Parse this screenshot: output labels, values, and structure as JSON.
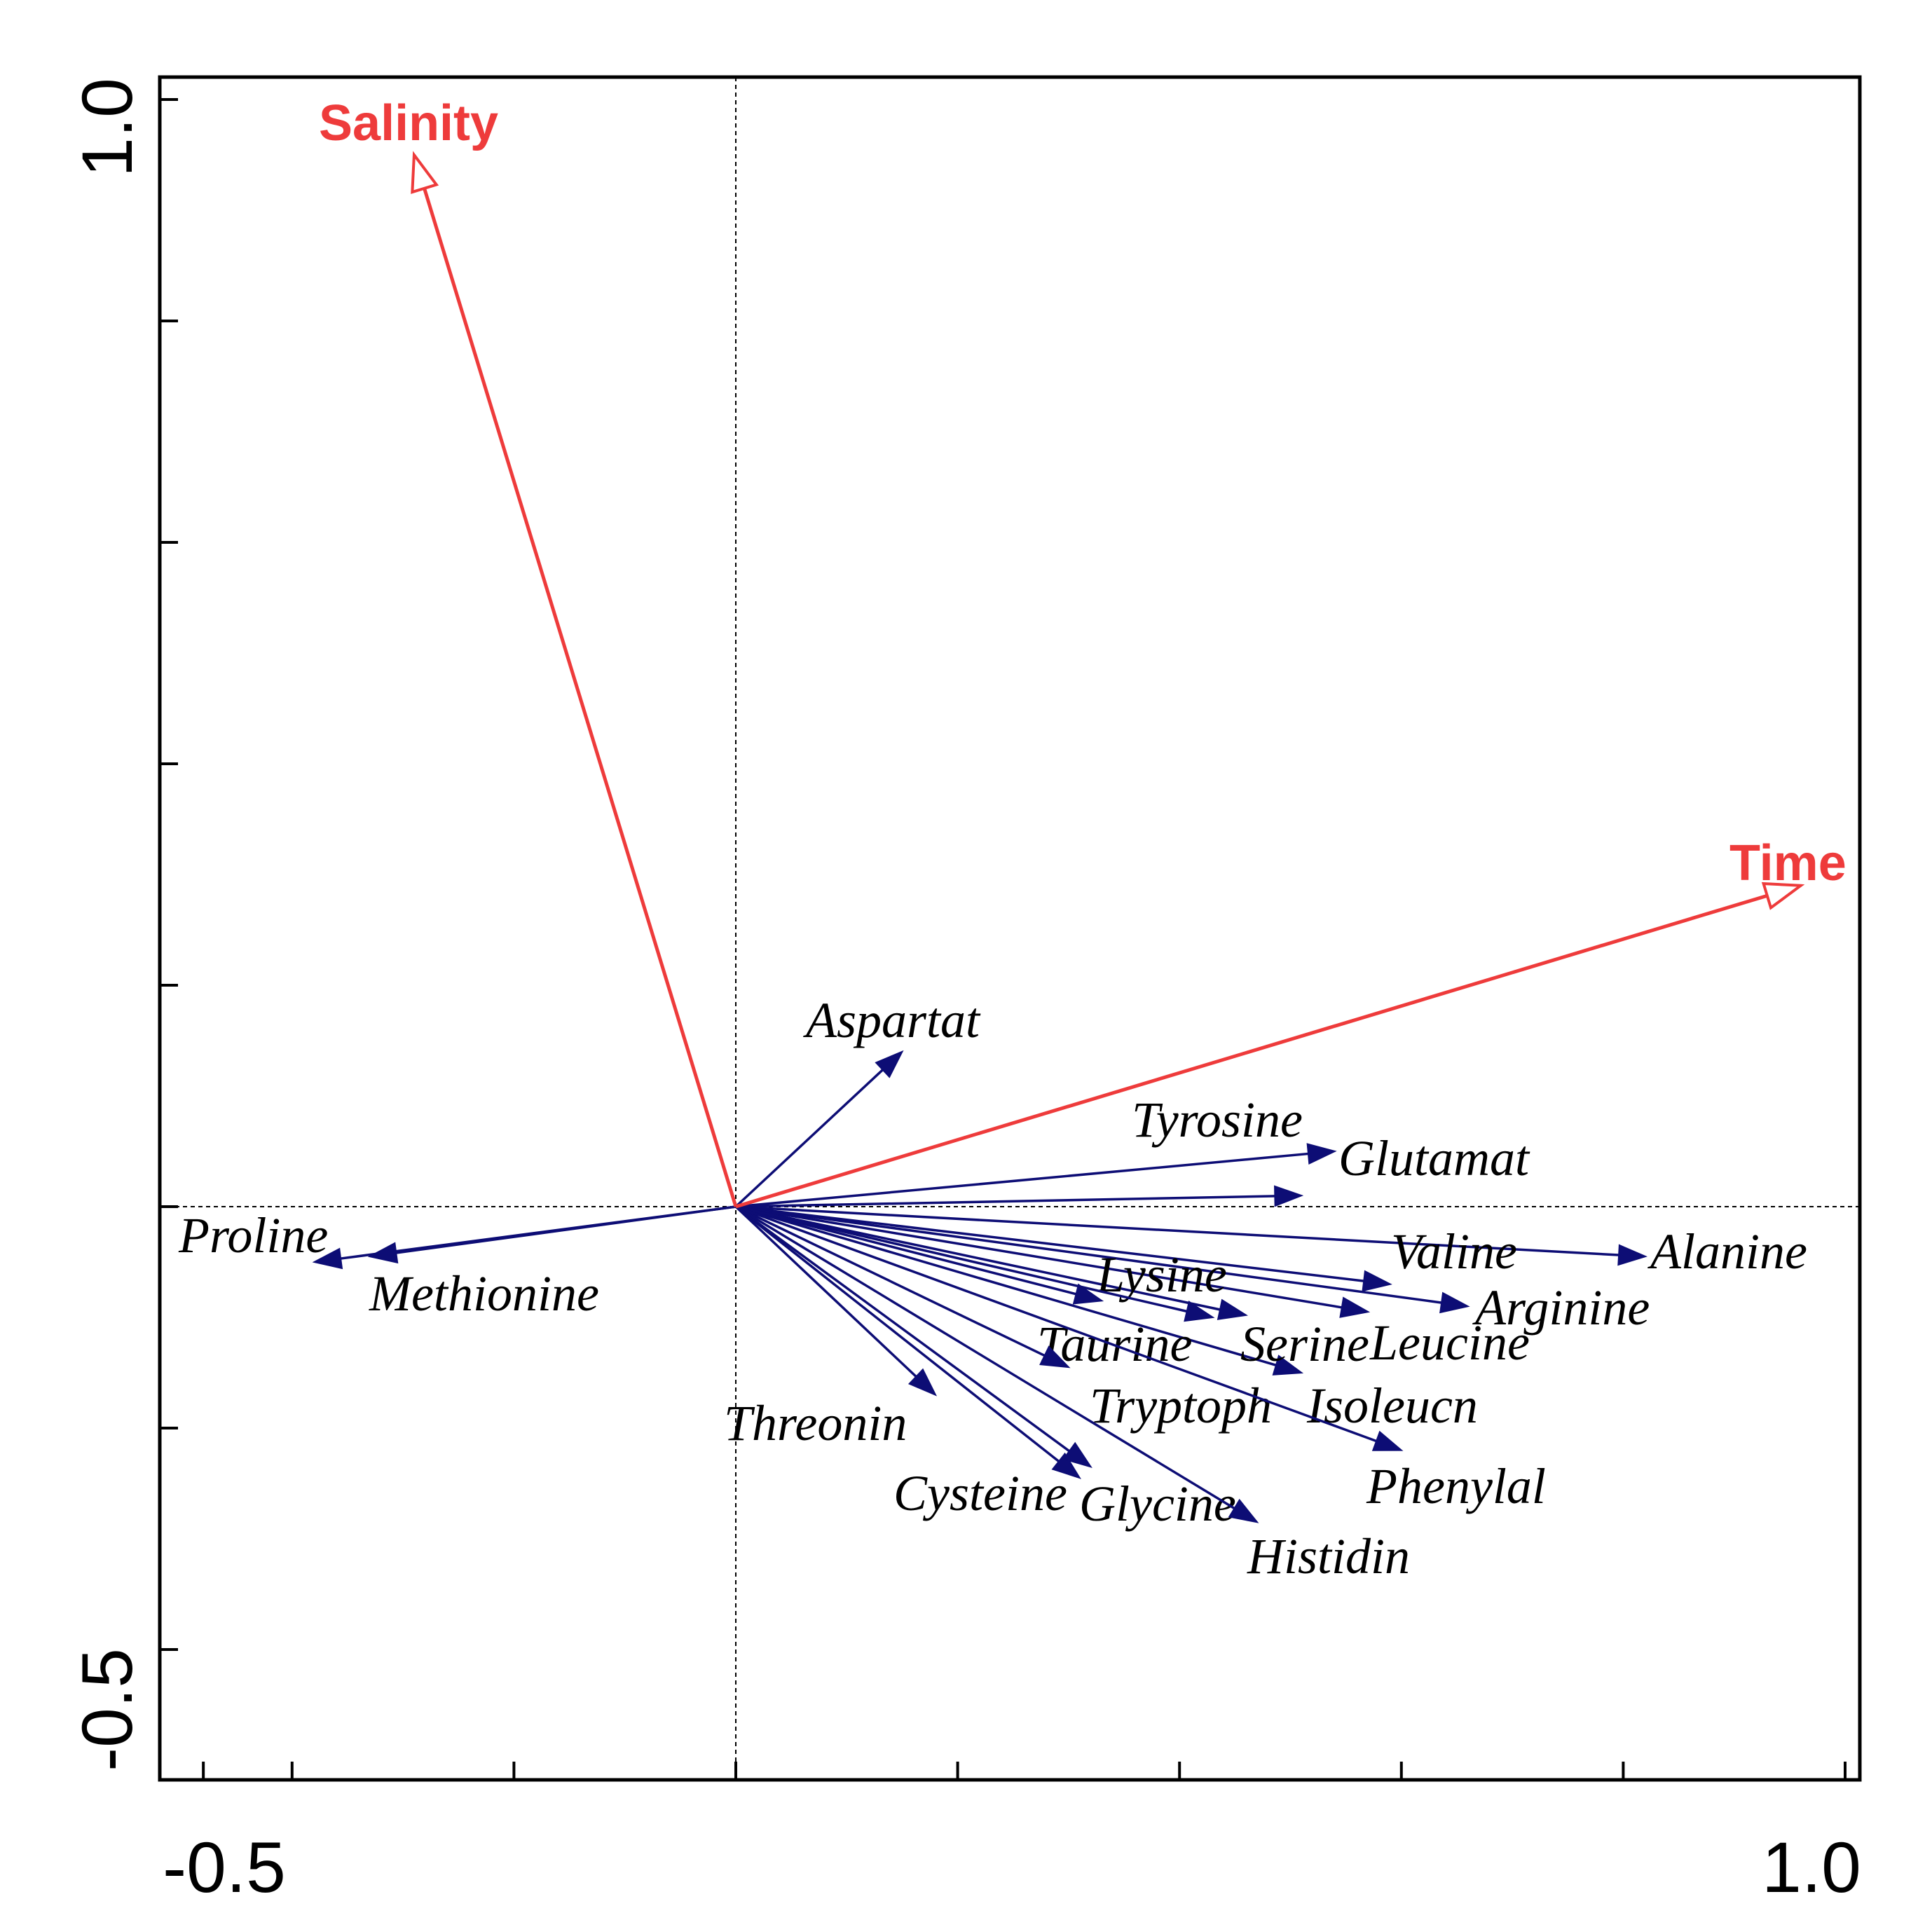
{
  "chart_data": {
    "type": "biplot",
    "xlim": [
      -0.5,
      1.0
    ],
    "ylim": [
      -0.5,
      1.0
    ],
    "x_tick_labels": [
      {
        "value": -0.5,
        "label": "-0.5"
      },
      {
        "value": 1.0,
        "label": "1.0"
      }
    ],
    "y_tick_labels": [
      {
        "value": 1.0,
        "label": "1.0"
      },
      {
        "value": -0.5,
        "label": "-0.5"
      }
    ],
    "x_ticks": [
      -0.48,
      -0.4,
      -0.2,
      0.0,
      0.2,
      0.4,
      0.6,
      0.8,
      1.0
    ],
    "y_ticks": [
      -0.4,
      -0.2,
      0.0,
      0.2,
      0.4,
      0.6,
      0.8,
      1.0
    ],
    "reference_lines": {
      "x": 0.0,
      "y": 0.0
    },
    "environment_vectors": {
      "color": "#ee3b3b",
      "arrowhead": "open",
      "items": [
        {
          "name": "Salinity",
          "x": -0.29,
          "y": 0.95
        },
        {
          "name": "Time",
          "x": 0.96,
          "y": 0.29
        }
      ]
    },
    "species_vectors": {
      "color": "#0d0d75",
      "arrowhead": "filled",
      "items": [
        {
          "name": "Aspartat",
          "x": 0.15,
          "y": 0.14
        },
        {
          "name": "Tyrosine",
          "x": 0.54,
          "y": 0.05
        },
        {
          "name": "Glutamat",
          "x": 0.51,
          "y": 0.01
        },
        {
          "name": "Alanine",
          "x": 0.82,
          "y": -0.045
        },
        {
          "name": "Valine",
          "x": 0.59,
          "y": -0.07
        },
        {
          "name": "Arginine",
          "x": 0.66,
          "y": -0.09
        },
        {
          "name": "Leucine",
          "x": 0.57,
          "y": -0.095
        },
        {
          "name": "Lysine",
          "x": 0.46,
          "y": -0.098
        },
        {
          "name": "Serine",
          "x": 0.51,
          "y": -0.15
        },
        {
          "name": "Taurine",
          "x": 0.33,
          "y": -0.085
        },
        {
          "name": "Isoleucn",
          "x": 0.43,
          "y": -0.1
        },
        {
          "name": "Tryptoph",
          "x": 0.3,
          "y": -0.145
        },
        {
          "name": "Phenylal",
          "x": 0.6,
          "y": -0.22
        },
        {
          "name": "Threonin",
          "x": 0.18,
          "y": -0.17
        },
        {
          "name": "Cysteine",
          "x": 0.31,
          "y": -0.245
        },
        {
          "name": "Glycine",
          "x": 0.32,
          "y": -0.235
        },
        {
          "name": "Histidin",
          "x": 0.47,
          "y": -0.285
        },
        {
          "name": "Proline",
          "x": -0.38,
          "y": -0.05
        },
        {
          "name": "Methionine",
          "x": -0.33,
          "y": -0.045
        }
      ]
    }
  }
}
